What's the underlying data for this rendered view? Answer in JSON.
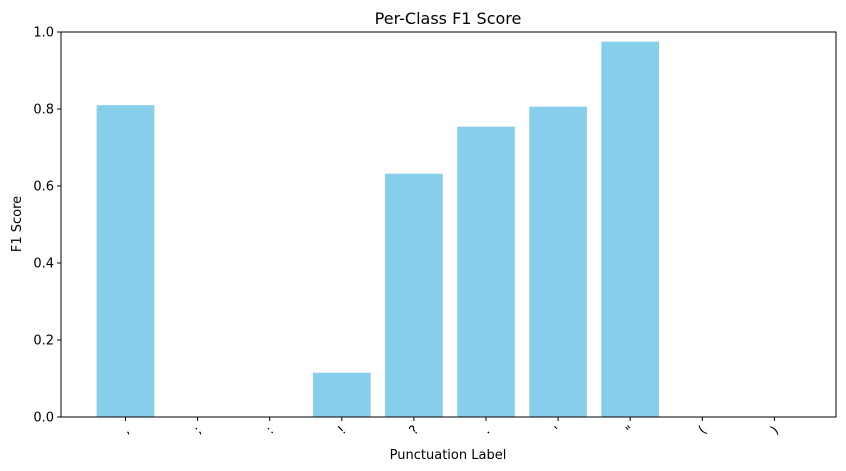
{
  "chart_data": {
    "type": "bar",
    "title": "Per-Class F1 Score",
    "xlabel": "Punctuation Label",
    "ylabel": "F1 Score",
    "categories": [
      ",",
      ";",
      ":",
      "!",
      "?",
      ".",
      "'",
      "\"",
      "(",
      ")"
    ],
    "values": [
      0.81,
      0.0,
      0.0,
      0.115,
      0.632,
      0.754,
      0.806,
      0.975,
      0.0,
      0.0
    ],
    "ylim": [
      0,
      1.0
    ],
    "yticks": [
      "0.0",
      "0.2",
      "0.4",
      "0.6",
      "0.8",
      "1.0"
    ],
    "ytick_values": [
      0,
      0.2,
      0.4,
      0.6,
      0.8,
      1.0
    ],
    "bar_color": "#87ceeb",
    "grid": false,
    "legend": "none"
  }
}
